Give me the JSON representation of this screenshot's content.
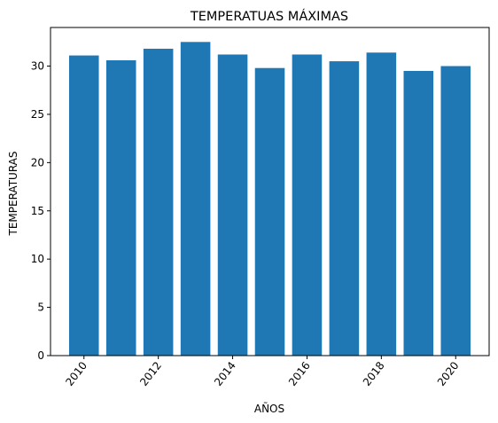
{
  "chart_data": {
    "type": "bar",
    "title": "TEMPERATUAS MÁXIMAS",
    "xlabel": "AÑOS",
    "ylabel": "TEMPERATURAS",
    "categories": [
      2010,
      2011,
      2012,
      2013,
      2014,
      2015,
      2016,
      2017,
      2018,
      2019,
      2020
    ],
    "values": [
      31.1,
      30.6,
      31.8,
      32.5,
      31.2,
      29.8,
      31.2,
      30.5,
      31.4,
      29.5,
      30.0
    ],
    "xticks": [
      "2010",
      "2012",
      "2014",
      "2016",
      "2018",
      "2020"
    ],
    "yticks": [
      "0",
      "5",
      "10",
      "15",
      "20",
      "25",
      "30"
    ],
    "ylim": [
      0,
      34
    ],
    "bar_color": "#1f77b4",
    "grid": false,
    "legend": "none"
  }
}
